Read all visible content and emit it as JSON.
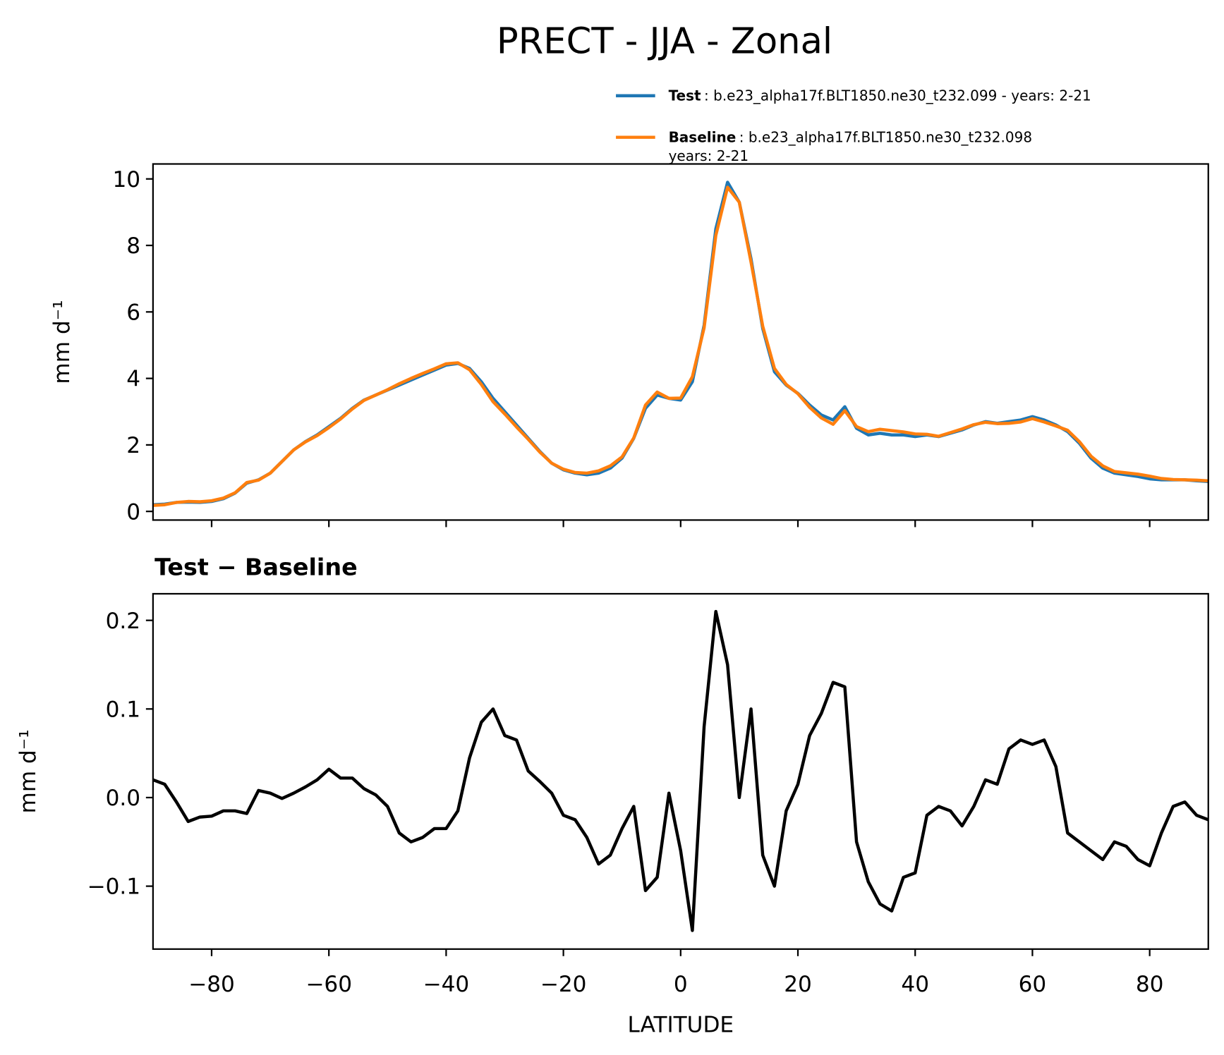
{
  "chart_data": [
    {
      "type": "line",
      "title": "PRECT - JJA - Zonal",
      "ylabel": "mm d⁻¹",
      "x": [
        -90,
        -88,
        -86,
        -84,
        -82,
        -80,
        -78,
        -76,
        -74,
        -72,
        -70,
        -68,
        -66,
        -64,
        -62,
        -60,
        -58,
        -56,
        -54,
        -52,
        -50,
        -48,
        -46,
        -44,
        -42,
        -40,
        -38,
        -36,
        -34,
        -32,
        -30,
        -28,
        -26,
        -24,
        -22,
        -20,
        -18,
        -16,
        -14,
        -12,
        -10,
        -8,
        -6,
        -4,
        -2,
        0,
        2,
        4,
        6,
        8,
        10,
        12,
        14,
        16,
        18,
        20,
        22,
        24,
        26,
        28,
        30,
        32,
        34,
        36,
        38,
        40,
        42,
        44,
        46,
        48,
        50,
        52,
        54,
        56,
        58,
        60,
        62,
        64,
        66,
        68,
        70,
        72,
        74,
        76,
        78,
        80,
        82,
        84,
        86,
        88,
        90
      ],
      "series": [
        {
          "name": "Test",
          "description": [
            ": b.e23_alpha17f.BLT1850.ne30_t232.099 - years: 2-21"
          ],
          "color": "#1f77b4",
          "values": [
            0.2,
            0.22,
            0.27,
            0.28,
            0.27,
            0.3,
            0.38,
            0.55,
            0.85,
            0.95,
            1.15,
            1.5,
            1.85,
            2.1,
            2.3,
            2.55,
            2.8,
            3.1,
            3.35,
            3.5,
            3.65,
            3.8,
            3.95,
            4.1,
            4.25,
            4.4,
            4.45,
            4.3,
            3.9,
            3.4,
            3.0,
            2.6,
            2.2,
            1.8,
            1.45,
            1.25,
            1.15,
            1.1,
            1.15,
            1.3,
            1.6,
            2.2,
            3.1,
            3.5,
            3.4,
            3.35,
            3.9,
            5.6,
            8.5,
            9.9,
            9.3,
            7.6,
            5.5,
            4.2,
            3.8,
            3.55,
            3.2,
            2.9,
            2.75,
            3.15,
            2.5,
            2.3,
            2.35,
            2.3,
            2.3,
            2.25,
            2.3,
            2.25,
            2.35,
            2.45,
            2.6,
            2.7,
            2.65,
            2.7,
            2.75,
            2.85,
            2.75,
            2.6,
            2.4,
            2.05,
            1.6,
            1.3,
            1.15,
            1.1,
            1.05,
            0.98,
            0.95,
            0.95,
            0.95,
            0.92,
            0.9
          ]
        },
        {
          "name": "Baseline",
          "description": [
            ": b.e23_alpha17f.BLT1850.ne30_t232.098",
            "years: 2-21"
          ],
          "color": "#ff7f0e",
          "values": [
            0.18,
            0.2,
            0.27,
            0.3,
            0.29,
            0.32,
            0.4,
            0.56,
            0.87,
            0.94,
            1.15,
            1.5,
            1.85,
            2.09,
            2.28,
            2.52,
            2.78,
            3.08,
            3.34,
            3.5,
            3.66,
            3.84,
            4.0,
            4.15,
            4.29,
            4.44,
            4.47,
            4.26,
            3.82,
            3.3,
            2.93,
            2.54,
            2.17,
            1.78,
            1.45,
            1.27,
            1.17,
            1.15,
            1.22,
            1.37,
            1.64,
            2.21,
            3.2,
            3.59,
            3.4,
            3.41,
            4.05,
            5.52,
            8.3,
            9.75,
            9.3,
            7.5,
            5.57,
            4.3,
            3.82,
            3.54,
            3.13,
            2.81,
            2.62,
            3.03,
            2.55,
            2.4,
            2.47,
            2.43,
            2.39,
            2.33,
            2.32,
            2.26,
            2.37,
            2.48,
            2.61,
            2.68,
            2.64,
            2.65,
            2.69,
            2.79,
            2.69,
            2.57,
            2.44,
            2.1,
            1.66,
            1.37,
            1.2,
            1.16,
            1.12,
            1.06,
            0.99,
            0.96,
            0.95,
            0.94,
            0.92
          ]
        }
      ],
      "xlim": [
        -90,
        90
      ],
      "xticks": [
        -80,
        -60,
        -40,
        -20,
        0,
        20,
        40,
        60,
        80
      ],
      "ylim": [
        -0.26,
        10.45
      ],
      "yticks": [
        0,
        2,
        4,
        6,
        8,
        10
      ]
    },
    {
      "type": "line",
      "title": "Test − Baseline",
      "xlabel": "LATITUDE",
      "ylabel": "mm d⁻¹",
      "x": [
        -90,
        -88,
        -86,
        -84,
        -82,
        -80,
        -78,
        -76,
        -74,
        -72,
        -70,
        -68,
        -66,
        -64,
        -62,
        -60,
        -58,
        -56,
        -54,
        -52,
        -50,
        -48,
        -46,
        -44,
        -42,
        -40,
        -38,
        -36,
        -34,
        -32,
        -30,
        -28,
        -26,
        -24,
        -22,
        -20,
        -18,
        -16,
        -14,
        -12,
        -10,
        -8,
        -6,
        -4,
        -2,
        0,
        2,
        4,
        6,
        8,
        10,
        12,
        14,
        16,
        18,
        20,
        22,
        24,
        26,
        28,
        30,
        32,
        34,
        36,
        38,
        40,
        42,
        44,
        46,
        48,
        50,
        52,
        54,
        56,
        58,
        60,
        62,
        64,
        66,
        68,
        70,
        72,
        74,
        76,
        78,
        80,
        82,
        84,
        86,
        88,
        90
      ],
      "series": [
        {
          "name": "Test − Baseline",
          "color": "#000000",
          "values": [
            0.02,
            0.015,
            -0.005,
            -0.027,
            -0.022,
            -0.021,
            -0.015,
            -0.015,
            -0.018,
            0.008,
            0.005,
            -0.001,
            0.005,
            0.012,
            0.02,
            0.032,
            0.022,
            0.022,
            0.01,
            0.003,
            -0.01,
            -0.04,
            -0.05,
            -0.045,
            -0.035,
            -0.035,
            -0.015,
            0.045,
            0.085,
            0.1,
            0.07,
            0.065,
            0.03,
            0.018,
            0.005,
            -0.02,
            -0.025,
            -0.045,
            -0.075,
            -0.065,
            -0.035,
            -0.01,
            -0.105,
            -0.09,
            0.005,
            -0.06,
            -0.15,
            0.08,
            0.21,
            0.15,
            0.0,
            0.1,
            -0.065,
            -0.1,
            -0.015,
            0.015,
            0.07,
            0.095,
            0.13,
            0.125,
            -0.05,
            -0.095,
            -0.12,
            -0.128,
            -0.09,
            -0.085,
            -0.02,
            -0.01,
            -0.015,
            -0.032,
            -0.01,
            0.02,
            0.015,
            0.055,
            0.065,
            0.06,
            0.065,
            0.035,
            -0.04,
            -0.05,
            -0.06,
            -0.07,
            -0.05,
            -0.055,
            -0.07,
            -0.077,
            -0.04,
            -0.01,
            -0.005,
            -0.02,
            -0.025
          ]
        }
      ],
      "xlim": [
        -90,
        90
      ],
      "xticks": [
        {
          "value": -80,
          "label": "−80"
        },
        {
          "value": -60,
          "label": "−60"
        },
        {
          "value": -40,
          "label": "−40"
        },
        {
          "value": -20,
          "label": "−20"
        },
        0,
        20,
        40,
        60,
        80
      ],
      "ylim": [
        -0.171,
        0.23
      ],
      "yticks": [
        {
          "value": -0.1,
          "label": "−0.1"
        },
        {
          "value": 0,
          "label": "0.0"
        },
        0.1,
        0.2
      ]
    }
  ]
}
